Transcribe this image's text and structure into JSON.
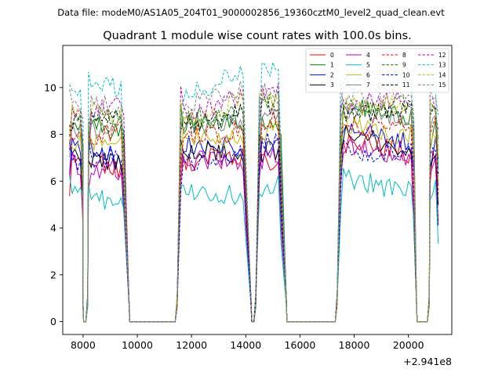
{
  "header": {
    "data_file": "Data file: modeM0/AS1A05_204T01_9000002856_19360cztM0_level2_quad_clean.evt"
  },
  "chart_data": {
    "type": "line",
    "title": "Quadrant 1 module wise count rates with 100.0s bins.",
    "xlabel": "",
    "ylabel": "",
    "x_offset_label": "+2.941e8",
    "xlim": [
      7250,
      21600
    ],
    "ylim": [
      -0.55,
      11.8
    ],
    "x_ticks": [
      8000,
      10000,
      12000,
      14000,
      16000,
      18000,
      20000
    ],
    "y_ticks": [
      0,
      2,
      4,
      6,
      8,
      10
    ],
    "x_tick_labels": [
      "8000",
      "10000",
      "12000",
      "14000",
      "16000",
      "18000",
      "20000"
    ],
    "y_tick_labels": [
      "0",
      "2",
      "4",
      "6",
      "8",
      "10"
    ],
    "bin_seconds": 100,
    "segments": [
      {
        "start": 7500,
        "end": 8000,
        "ramp_down_end": 8000
      },
      {
        "start": 8200,
        "end": 9500
      },
      {
        "start": 11600,
        "end": 14000
      },
      {
        "start": 14500,
        "end": 15300
      },
      {
        "start": 17500,
        "end": 20200
      },
      {
        "start": 20800,
        "end": 21100
      }
    ],
    "zero_intervals": [
      [
        8000,
        8100
      ],
      [
        9700,
        11400
      ],
      [
        14200,
        14300
      ],
      [
        15500,
        17300
      ],
      [
        20300,
        20700
      ]
    ],
    "legend": {
      "position": "top-right",
      "columns": 4
    },
    "series": [
      {
        "name": "0",
        "color": "#ff0000",
        "dash": "solid",
        "level": 7.0
      },
      {
        "name": "1",
        "color": "#008000",
        "dash": "solid",
        "level": 8.6
      },
      {
        "name": "2",
        "color": "#0000ff",
        "dash": "solid",
        "level": 7.6
      },
      {
        "name": "3",
        "color": "#000000",
        "dash": "solid",
        "level": 7.4
      },
      {
        "name": "4",
        "color": "#bf00bf",
        "dash": "solid",
        "level": 7.0
      },
      {
        "name": "5",
        "color": "#00bfbf",
        "dash": "solid",
        "level": 5.7
      },
      {
        "name": "6",
        "color": "#bfbf00",
        "dash": "solid",
        "level": 8.1
      },
      {
        "name": "7",
        "color": "#808080",
        "dash": "solid",
        "level": 8.7
      },
      {
        "name": "8",
        "color": "#ff0000",
        "dash": "dashed",
        "level": 8.3
      },
      {
        "name": "9",
        "color": "#008000",
        "dash": "dashed",
        "level": 9.1
      },
      {
        "name": "10",
        "color": "#0000ff",
        "dash": "dashed",
        "level": 7.2
      },
      {
        "name": "11",
        "color": "#000000",
        "dash": "dashed",
        "level": 8.8
      },
      {
        "name": "12",
        "color": "#bf00bf",
        "dash": "dashed",
        "level": 9.3
      },
      {
        "name": "13",
        "color": "#00bfbf",
        "dash": "dashed",
        "level": 10.2
      },
      {
        "name": "14",
        "color": "#bfbf00",
        "dash": "dashed",
        "level": 9.0
      },
      {
        "name": "15",
        "color": "#808080",
        "dash": "dashed",
        "level": 9.4
      }
    ]
  }
}
